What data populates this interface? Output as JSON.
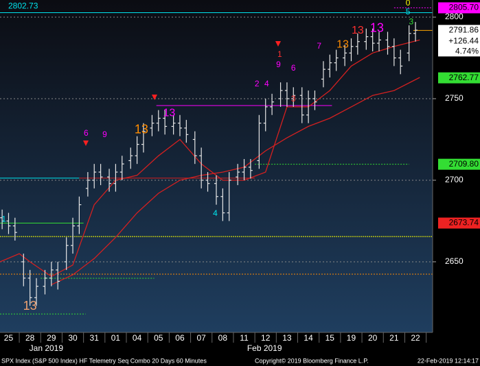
{
  "chart_data": {
    "type": "ohlc",
    "footer_left": "SPX Index (S&P 500 Index) HF Telemetry Seq Combo 20 Days 60 Minutes",
    "footer_center": "Copyright© 2019 Bloomberg Finance L.P.",
    "footer_right": "22-Feb-2019 12:14:17",
    "categories": [
      "25",
      "28",
      "29",
      "30",
      "31",
      "01",
      "04",
      "05",
      "06",
      "07",
      "08",
      "11",
      "12",
      "13",
      "14",
      "15",
      "19",
      "20",
      "21",
      "22"
    ],
    "month_labels": [
      {
        "label": "Jan 2019",
        "x": 1.76
      },
      {
        "label": "Feb 2019",
        "x": 11.95
      }
    ],
    "xlim": [
      -0.4,
      19.8
    ],
    "ylim": [
      2606.7,
      2810.5
    ],
    "yticks": [
      2650,
      2700,
      2750,
      2800
    ],
    "grid": true,
    "bar_color": "#e8e8e8",
    "x": [
      -0.3,
      0,
      0.3,
      0.7,
      1,
      1.3,
      1.7,
      2,
      2.3,
      2.7,
      3,
      3.3,
      3.7,
      4,
      4.3,
      4.7,
      5,
      5.3,
      5.7,
      6,
      6.3,
      6.7,
      7,
      7.3,
      7.7,
      8,
      8.3,
      8.7,
      9,
      9.3,
      9.7,
      10,
      10.3,
      10.7,
      11,
      11.3,
      11.7,
      12,
      12.3,
      12.7,
      13,
      13.3,
      13.7,
      14,
      14.3,
      14.7,
      15,
      15.3,
      15.7,
      16,
      16.3,
      16.7,
      17,
      17.3,
      17.7,
      18,
      18.3,
      18.7,
      19
    ],
    "open": [
      2677,
      2675,
      2672,
      2650,
      2640,
      2628,
      2635,
      2640,
      2645,
      2650,
      2660,
      2672,
      2695,
      2700,
      2705,
      2702,
      2698,
      2705,
      2712,
      2715,
      2722,
      2732,
      2735,
      2738,
      2733,
      2735,
      2732,
      2725,
      2715,
      2700,
      2698,
      2690,
      2680,
      2702,
      2705,
      2708,
      2712,
      2735,
      2745,
      2750,
      2755,
      2750,
      2752,
      2740,
      2750,
      2762,
      2768,
      2772,
      2775,
      2778,
      2782,
      2785,
      2788,
      2784,
      2786,
      2782,
      2775,
      2778,
      2790
    ],
    "high": [
      2682,
      2680,
      2677,
      2655,
      2645,
      2640,
      2645,
      2650,
      2650,
      2665,
      2677,
      2690,
      2705,
      2710,
      2710,
      2707,
      2710,
      2715,
      2720,
      2727,
      2735,
      2740,
      2743,
      2743,
      2740,
      2740,
      2737,
      2730,
      2720,
      2705,
      2703,
      2695,
      2705,
      2710,
      2713,
      2713,
      2740,
      2750,
      2753,
      2760,
      2760,
      2757,
      2757,
      2755,
      2755,
      2773,
      2777,
      2780,
      2783,
      2787,
      2790,
      2793,
      2793,
      2791,
      2791,
      2787,
      2780,
      2795,
      2797
    ],
    "low": [
      2670,
      2667,
      2663,
      2635,
      2623,
      2623,
      2630,
      2635,
      2633,
      2645,
      2655,
      2667,
      2690,
      2695,
      2697,
      2693,
      2693,
      2700,
      2707,
      2710,
      2717,
      2727,
      2730,
      2728,
      2728,
      2727,
      2723,
      2710,
      2695,
      2693,
      2685,
      2675,
      2675,
      2697,
      2700,
      2701,
      2707,
      2730,
      2740,
      2745,
      2745,
      2745,
      2735,
      2735,
      2743,
      2757,
      2763,
      2767,
      2770,
      2773,
      2777,
      2780,
      2779,
      2779,
      2777,
      2770,
      2765,
      2773,
      2785
    ],
    "close": [
      2675,
      2672,
      2668,
      2640,
      2628,
      2635,
      2640,
      2645,
      2638,
      2660,
      2672,
      2685,
      2700,
      2705,
      2702,
      2698,
      2705,
      2710,
      2715,
      2722,
      2730,
      2735,
      2738,
      2733,
      2735,
      2732,
      2728,
      2715,
      2700,
      2698,
      2690,
      2680,
      2700,
      2705,
      2708,
      2706,
      2735,
      2745,
      2748,
      2755,
      2750,
      2752,
      2740,
      2750,
      2748,
      2768,
      2772,
      2775,
      2778,
      2782,
      2785,
      2788,
      2784,
      2786,
      2782,
      2775,
      2770,
      2790,
      2792
    ],
    "overlays": [
      {
        "color": "#d42020",
        "x": [
          -0.4,
          0.5,
          1,
          2,
          3,
          4,
          5,
          6,
          7,
          8,
          9,
          10,
          11,
          12,
          13,
          14,
          15,
          16,
          17,
          18,
          19.2
        ],
        "values": [
          2650,
          2655,
          2650,
          2641,
          2648,
          2685,
          2700,
          2703,
          2715,
          2725,
          2710,
          2700,
          2700,
          2705,
          2745,
          2745,
          2755,
          2770,
          2778,
          2782,
          2786
        ]
      },
      {
        "color": "#d42020",
        "x": [
          2,
          3,
          4,
          5,
          6,
          7,
          8,
          9,
          10,
          11,
          12,
          13,
          14,
          15,
          16,
          17,
          18,
          19.2
        ],
        "values": [
          2636,
          2642,
          2652,
          2665,
          2680,
          2692,
          2700,
          2703,
          2705,
          2708,
          2718,
          2726,
          2733,
          2738,
          2745,
          2752,
          2755,
          2763
        ]
      }
    ],
    "levels": [
      {
        "value": 2802.73,
        "label": "2802.73",
        "color": "#00e5ee",
        "x0": -0.4,
        "x1": 19.8,
        "dash": "none"
      },
      {
        "value": 2805.7,
        "color": "#ff00ff",
        "x0": 18,
        "x1": 19.8,
        "dash": "2,2"
      },
      {
        "value": 2791.86,
        "color": "#ffa500",
        "x0": 18.9,
        "x1": 19.8,
        "dash": "none"
      },
      {
        "value": 2745.8,
        "color": "#ff00ff",
        "x0": 6.9,
        "x1": 15.1,
        "dash": "none"
      },
      {
        "value": 2709.8,
        "color": "#33dd33",
        "x0": 11.5,
        "x1": 18.7,
        "dash": "2,2"
      },
      {
        "value": 2701.3,
        "color": "#00e5ee",
        "x0": -0.4,
        "x1": 3.3,
        "dash": "none"
      },
      {
        "value": 2701.3,
        "color": "#d42020",
        "x0": 3.3,
        "x1": 11.5,
        "dash": "none"
      },
      {
        "value": 2673.74,
        "color": "#33dd33",
        "x0": -0.4,
        "x1": 3.5,
        "dash": "none"
      },
      {
        "value": 2665.5,
        "color": "#ffff00",
        "x0": -0.4,
        "x1": 19.8,
        "dash": "2,1"
      },
      {
        "value": 2642.4,
        "color": "#ff8c00",
        "x0": -0.4,
        "x1": 19.8,
        "dash": "2,2"
      },
      {
        "value": 2639.9,
        "color": "#33dd33",
        "x0": 1.5,
        "x1": 6.8,
        "dash": "2,2"
      },
      {
        "value": 2618,
        "color": "#33dd33",
        "x0": -0.4,
        "x1": 3.6,
        "dash": "2,2"
      }
    ],
    "price_tags": [
      {
        "label": "2805.70",
        "value": 2805.7,
        "bg": "#ff00ff"
      },
      {
        "label": "2791.86",
        "value": 2791.86,
        "bg": "#ffffff"
      },
      {
        "label": "2762.77",
        "value": 2762.77,
        "bg": "#33dd33"
      },
      {
        "label": "2709.80",
        "value": 2709.8,
        "bg": "#33dd33"
      },
      {
        "label": "2673.74",
        "value": 2673.74,
        "bg": "#ee2222"
      }
    ],
    "net_change": {
      "value": 126.44,
      "label": "+126.44"
    },
    "pct_change": {
      "value": 4.74,
      "label": "4.74%"
    },
    "annotations": [
      {
        "label": "13",
        "x": 1,
        "value": 2622.6,
        "color": "#f0a070",
        "size": 18
      },
      {
        "label": "13",
        "x": 6.2,
        "value": 2730.7,
        "color": "#ff8c00",
        "size": 18
      },
      {
        "label": "13",
        "x": 7.5,
        "value": 2741,
        "color": "#ff00ff",
        "size": 16
      },
      {
        "label": "13",
        "x": 17.2,
        "value": 2792.9,
        "color": "#ff00ff",
        "size": 18
      },
      {
        "label": "13",
        "x": 16.3,
        "value": 2791.6,
        "color": "#ff3030",
        "size": 16
      },
      {
        "label": "13",
        "x": 15.6,
        "value": 2783,
        "color": "#ff8c00",
        "size": 16
      },
      {
        "label": "4",
        "x": 9.65,
        "value": 2679.4,
        "color": "#00e5ee",
        "size": 12
      },
      {
        "label": "1",
        "x": 12.66,
        "value": 2776.9,
        "color": "#ff3030",
        "size": 12
      },
      {
        "label": "9",
        "x": 12.6,
        "value": 2770.6,
        "color": "#ff00ff",
        "size": 12
      },
      {
        "label": "6",
        "x": 13.3,
        "value": 2768.5,
        "color": "#ff00ff",
        "size": 12
      },
      {
        "label": "7",
        "x": 14.5,
        "value": 2782,
        "color": "#ff00ff",
        "size": 12
      },
      {
        "label": "5",
        "x": 18.65,
        "value": 2803,
        "color": "#00e5ee",
        "size": 12
      },
      {
        "label": "0",
        "x": 18.65,
        "value": 2808.4,
        "color": "#ffff00",
        "size": 12
      },
      {
        "label": "3",
        "x": 18.8,
        "value": 2797,
        "color": "#33dd33",
        "size": 12
      },
      {
        "label": "6",
        "x": 3.62,
        "value": 2728.6,
        "color": "#ff00ff",
        "size": 12
      },
      {
        "label": "9",
        "x": 4.49,
        "value": 2727.7,
        "color": "#ff00ff",
        "size": 12
      },
      {
        "label": "1",
        "x": -0.22,
        "value": 2676,
        "color": "#00e5ee",
        "size": 12
      },
      {
        "label": "2",
        "x": 11.6,
        "value": 2758.8,
        "color": "#ff00ff",
        "size": 12
      },
      {
        "label": "4",
        "x": 12.05,
        "value": 2758.8,
        "color": "#ff00ff",
        "size": 12
      },
      {
        "label": "3",
        "x": 13.3,
        "value": 2749.6,
        "color": "#ff3030",
        "size": 12
      }
    ]
  }
}
